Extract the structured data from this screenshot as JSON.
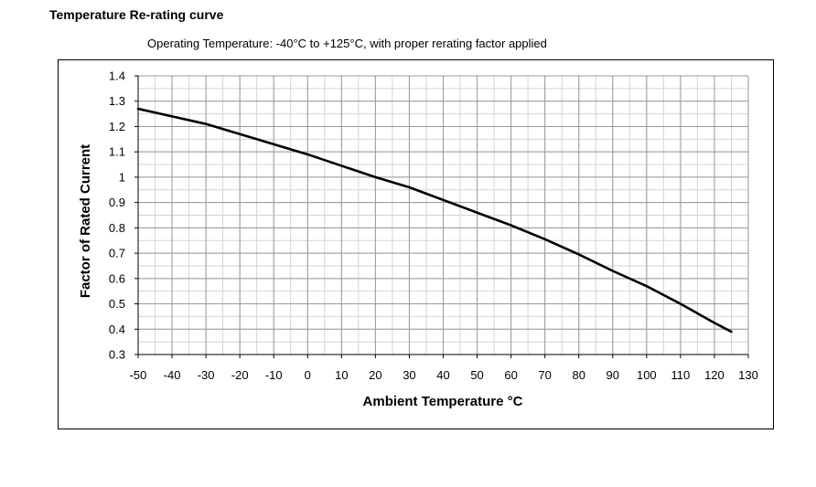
{
  "page": {
    "heading": "Temperature Re-rating curve",
    "caption": "Operating Temperature:  -40°C to +125°C, with proper rerating factor applied"
  },
  "chart_data": {
    "type": "line",
    "title": "",
    "xlabel": "Ambient Temperature °C",
    "ylabel": "Factor of Rated Current",
    "xlim": [
      -50,
      130
    ],
    "ylim": [
      0.3,
      1.4
    ],
    "x_major_ticks": [
      -50,
      -40,
      -30,
      -20,
      -10,
      0,
      10,
      20,
      30,
      40,
      50,
      60,
      70,
      80,
      90,
      100,
      110,
      120,
      130
    ],
    "y_major_ticks": [
      0.3,
      0.4,
      0.5,
      0.6,
      0.7,
      0.8,
      0.9,
      1.0,
      1.1,
      1.2,
      1.3,
      1.4
    ],
    "x_tick_labels": [
      "-50",
      "-40",
      "-30",
      "-20",
      "-10",
      "0",
      "10",
      "20",
      "30",
      "40",
      "50",
      "60",
      "70",
      "80",
      "90",
      "100",
      "110",
      "120",
      "130"
    ],
    "y_tick_labels": [
      "0.3",
      "0.4",
      "0.5",
      "0.6",
      "0.7",
      "0.8",
      "0.9",
      "1",
      "1.1",
      "1.2",
      "1.3",
      "1.4"
    ],
    "grid": true,
    "minor_grid": {
      "x_step": 5,
      "y_step": 0.05
    },
    "legend": "none",
    "series": [
      {
        "color": "#000000",
        "x": [
          -50,
          -40,
          -30,
          -20,
          -10,
          0,
          10,
          20,
          30,
          40,
          50,
          60,
          70,
          80,
          90,
          100,
          110,
          120,
          125
        ],
        "y": [
          1.27,
          1.24,
          1.21,
          1.17,
          1.13,
          1.09,
          1.045,
          1.0,
          0.96,
          0.91,
          0.86,
          0.81,
          0.755,
          0.695,
          0.63,
          0.57,
          0.5,
          0.425,
          0.39
        ]
      }
    ]
  }
}
